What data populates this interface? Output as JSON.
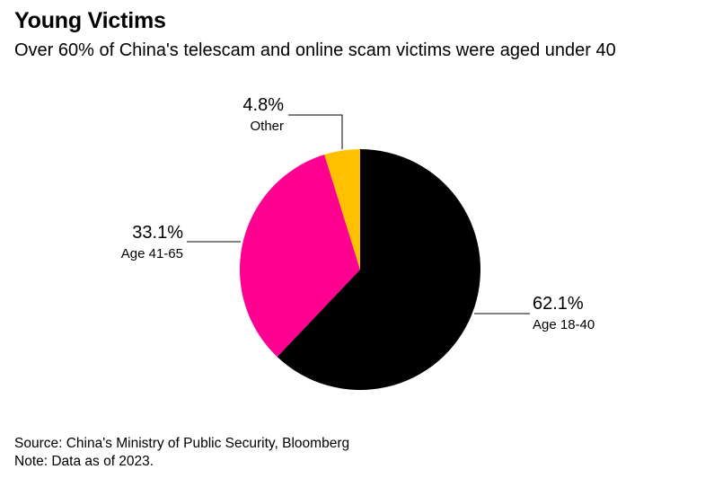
{
  "title": "Young Victims",
  "subtitle": "Over 60% of China's telescam and online scam victims were aged under 40",
  "chart_data": {
    "type": "pie",
    "slices": [
      {
        "label": "Age 18-40",
        "value": 62.1,
        "value_label": "62.1%",
        "color": "#000000"
      },
      {
        "label": "Age 41-65",
        "value": 33.1,
        "value_label": "33.1%",
        "color": "#ff0090"
      },
      {
        "label": "Other",
        "value": 4.8,
        "value_label": "4.8%",
        "color": "#ffc000"
      }
    ]
  },
  "footer": {
    "source": "Source: China's Ministry of Public Security, Bloomberg",
    "note": "Note: Data as of 2023."
  }
}
